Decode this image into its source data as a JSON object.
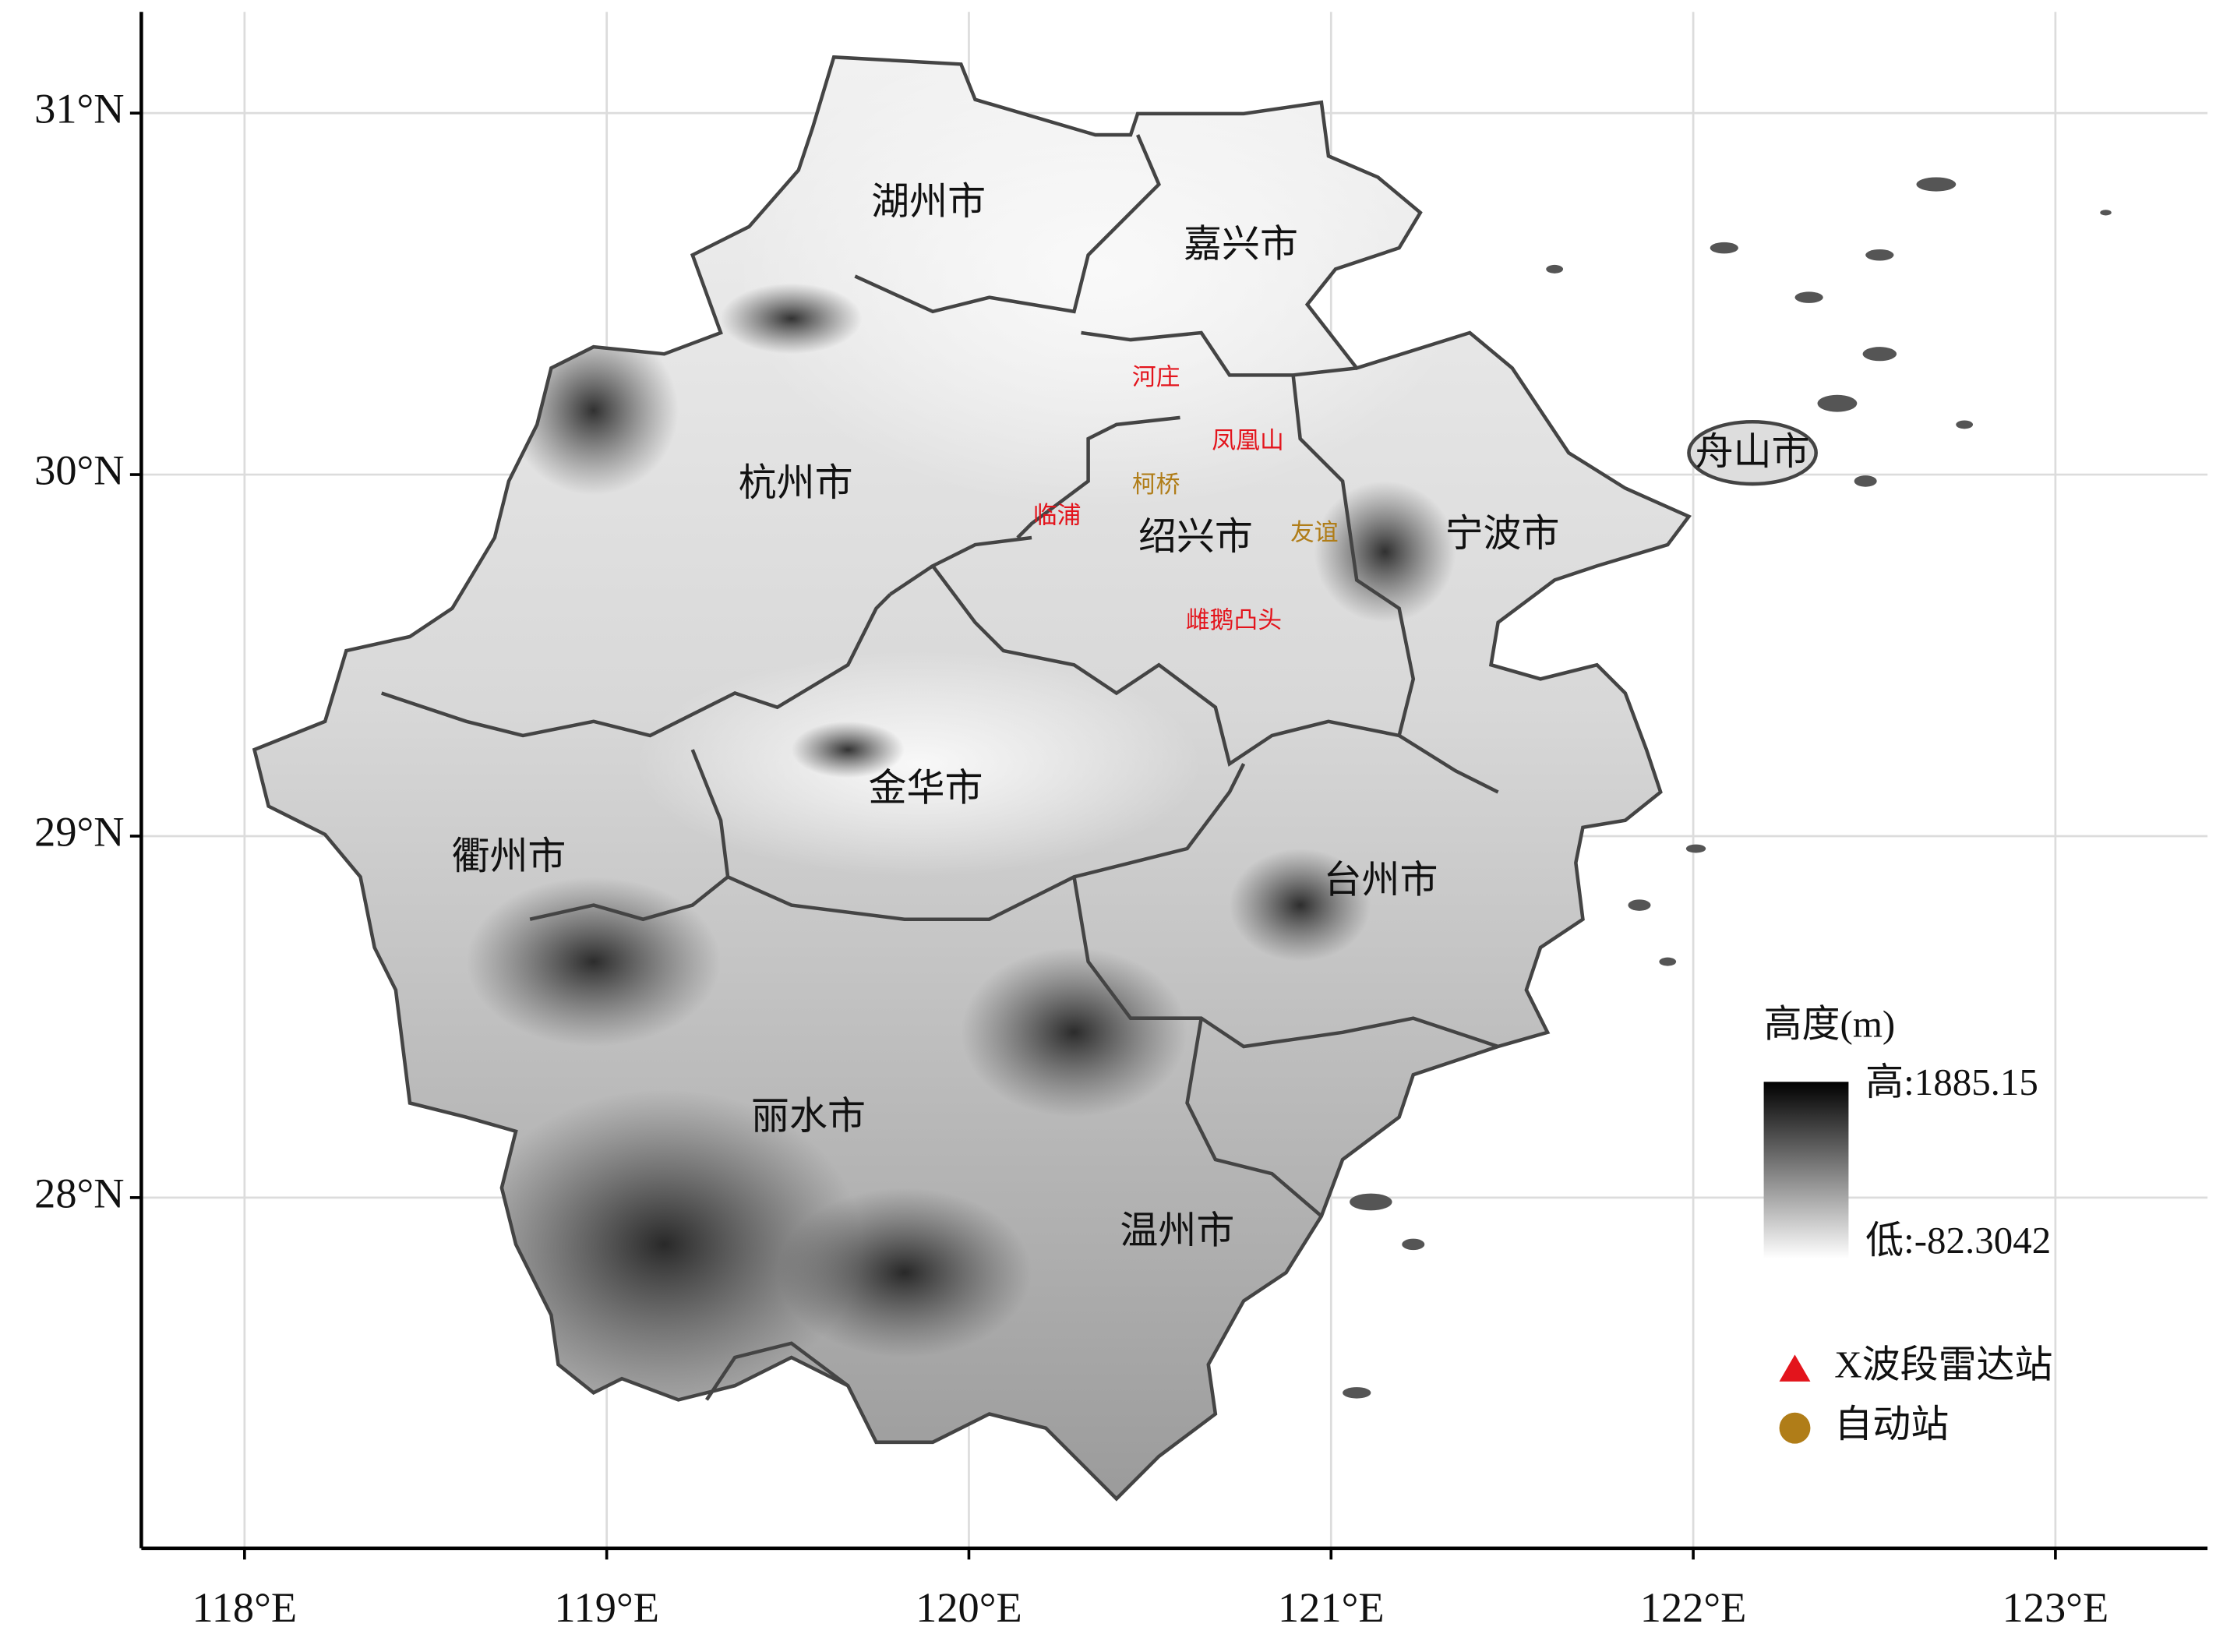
{
  "map": {
    "xlim": [
      117.715,
      123.42
    ],
    "ylim": [
      27.03,
      31.28
    ],
    "grid": true,
    "xticks": [
      {
        "value": 118,
        "label": "118°E"
      },
      {
        "value": 119,
        "label": "119°E"
      },
      {
        "value": 120,
        "label": "120°E"
      },
      {
        "value": 121,
        "label": "121°E"
      },
      {
        "value": 122,
        "label": "122°E"
      },
      {
        "value": 123,
        "label": "123°E"
      }
    ],
    "yticks": [
      {
        "value": 28,
        "label": "28°N"
      },
      {
        "value": 29,
        "label": "29°N"
      },
      {
        "value": 30,
        "label": "30°N"
      },
      {
        "value": 31,
        "label": "31°N"
      }
    ]
  },
  "cities": [
    "湖州市",
    "嘉兴市",
    "杭州市",
    "舟山市",
    "绍兴市",
    "宁波市",
    "金华市",
    "衢州市",
    "台州市",
    "丽水市",
    "温州市"
  ],
  "stations": {
    "radar": [
      "河庄",
      "凤凰山",
      "临浦",
      "雌鹅凸头"
    ],
    "auto": [
      "柯桥",
      "友谊"
    ]
  },
  "legend": {
    "title": "高度(m)",
    "high": "高:1885.15",
    "low": "低:-82.3042",
    "items": [
      {
        "label": "X波段雷达站",
        "color": "#e3141c"
      },
      {
        "label": "自动站",
        "color": "#b07d18"
      }
    ]
  }
}
